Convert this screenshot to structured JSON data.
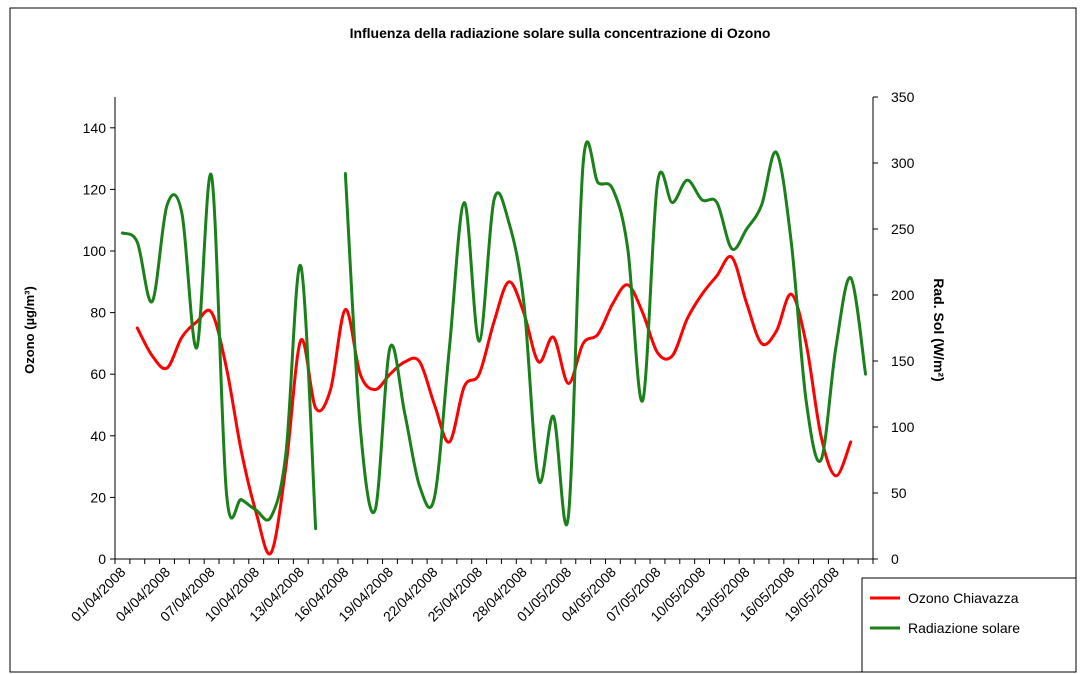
{
  "chart_data": {
    "type": "line",
    "title": "Influenza della radiazione solare sulla concentrazione di Ozono",
    "y_label": "Ozono (µg/m³)",
    "y2_label": "Rad. Sol (W/m²)",
    "categories": [
      "01/04/2008",
      null,
      null,
      "04/04/2008",
      null,
      null,
      "07/04/2008",
      null,
      null,
      "10/04/2008",
      null,
      null,
      "13/04/2008",
      null,
      null,
      "16/04/2008",
      null,
      null,
      "19/04/2008",
      null,
      null,
      "22/04/2008",
      null,
      null,
      "25/04/2008",
      null,
      null,
      "28/04/2008",
      null,
      null,
      "01/05/2008",
      null,
      null,
      "04/05/2008",
      null,
      null,
      "07/05/2008",
      null,
      null,
      "10/05/2008",
      null,
      null,
      "13/05/2008",
      null,
      null,
      "16/05/2008",
      null,
      null,
      "19/05/2008",
      null,
      null
    ],
    "series": [
      {
        "name": "Ozono Chiavazza",
        "color": "#ff0000",
        "axis": "y",
        "values": [
          null,
          75,
          66,
          62,
          72,
          77,
          80,
          62,
          35,
          15,
          2,
          30,
          71,
          49,
          55,
          81,
          60,
          55,
          60,
          64,
          64,
          50,
          38,
          56,
          60,
          77,
          90,
          80,
          64,
          72,
          57,
          70,
          73,
          83,
          89,
          80,
          67,
          66,
          78,
          86,
          92,
          98,
          83,
          70,
          74,
          86,
          70,
          40,
          27,
          38,
          null
        ]
      },
      {
        "name": "Radiazione solare",
        "color": "#1a801a",
        "axis": "y2",
        "values": [
          247,
          240,
          195,
          268,
          262,
          160,
          290,
          50,
          45,
          37,
          32,
          80,
          222,
          23,
          null,
          292,
          100,
          37,
          160,
          110,
          55,
          47,
          160,
          270,
          165,
          272,
          255,
          195,
          60,
          108,
          32,
          300,
          285,
          280,
          235,
          120,
          285,
          270,
          287,
          272,
          270,
          235,
          250,
          268,
          308,
          240,
          120,
          75,
          160,
          213,
          140
        ]
      }
    ],
    "ylim": [
      0,
      150
    ],
    "yticks": [
      0,
      20,
      40,
      60,
      80,
      100,
      120,
      140
    ],
    "y2lim": [
      0,
      350
    ],
    "y2ticks": [
      0,
      50,
      100,
      150,
      200,
      250,
      300,
      350
    ],
    "legend": "bottom-right"
  }
}
